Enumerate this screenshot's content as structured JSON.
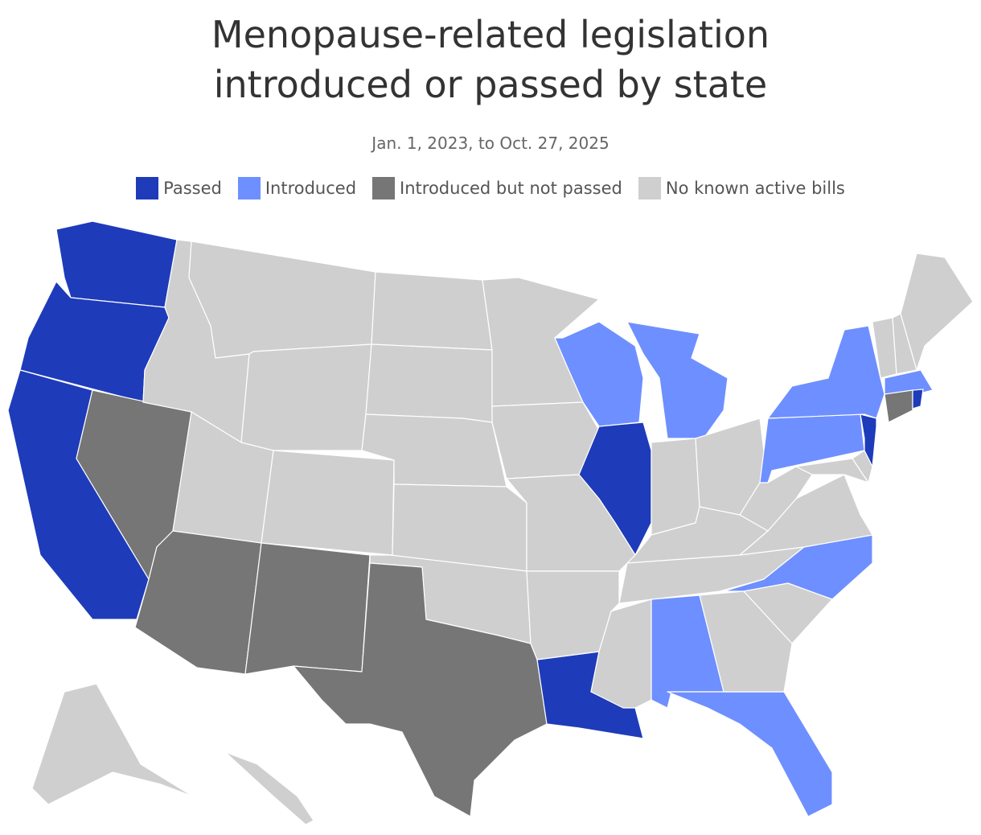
{
  "header": {
    "title": [
      "Menopause-related legislation",
      "introduced or passed by state"
    ],
    "subtitle": "Jan. 1, 2023, to Oct. 27, 2025"
  },
  "legend": [
    {
      "label": "Passed",
      "color": "#1e3bba"
    },
    {
      "label": "Introduced",
      "color": "#6e8fff"
    },
    {
      "label": "Introduced but not passed",
      "color": "#767676"
    },
    {
      "label": "No known active bills",
      "color": "#cfcfcf"
    }
  ],
  "map": {
    "states": [
      0,
      0,
      0,
      2,
      3,
      3,
      3,
      3,
      2,
      3,
      2,
      3,
      3,
      3,
      3,
      3,
      2,
      3,
      3,
      0,
      3,
      1,
      0,
      1,
      3,
      3,
      3,
      3,
      3,
      3,
      1,
      1,
      3,
      1,
      3,
      3,
      3,
      1,
      1,
      3,
      3,
      3,
      0,
      1,
      2,
      0,
      3,
      3
    ]
  }
}
